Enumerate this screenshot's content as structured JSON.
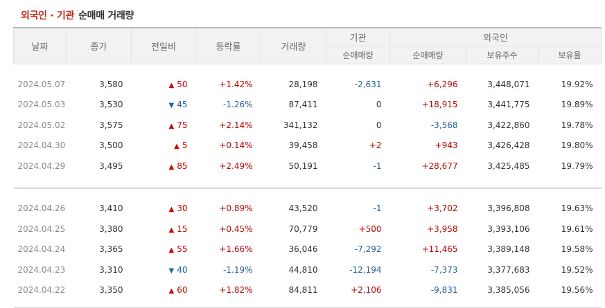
{
  "header": {
    "title_accent": "외국인 · 기관",
    "title_rest": "순매매 거래량"
  },
  "columns": {
    "date": "날짜",
    "close": "종가",
    "change": "전일비",
    "rate": "등락률",
    "volume": "거래량",
    "inst_group": "기관",
    "foreign_group": "외국인",
    "inst_net": "순매매량",
    "foreign_net": "순매매량",
    "holdings": "보유주수",
    "ratio": "보유율"
  },
  "icons": {
    "up": "▲",
    "down": "▼"
  },
  "colors": {
    "up": "#d60000",
    "down": "#1e60b0",
    "accent": "#c8291b"
  },
  "groups": [
    {
      "rows": [
        {
          "date": "2024.05.07",
          "close": "3,580",
          "dir": "up",
          "change": "50",
          "rate": "+1.42%",
          "volume": "28,198",
          "inst": "-2,631",
          "foreign": "+6,296",
          "holdings": "3,448,071",
          "ratio": "19.92%"
        },
        {
          "date": "2024.05.03",
          "close": "3,530",
          "dir": "down",
          "change": "45",
          "rate": "-1.26%",
          "volume": "87,411",
          "inst": "0",
          "foreign": "+18,915",
          "holdings": "3,441,775",
          "ratio": "19.89%"
        },
        {
          "date": "2024.05.02",
          "close": "3,575",
          "dir": "up",
          "change": "75",
          "rate": "+2.14%",
          "volume": "341,132",
          "inst": "0",
          "foreign": "-3,568",
          "holdings": "3,422,860",
          "ratio": "19.78%"
        },
        {
          "date": "2024.04.30",
          "close": "3,500",
          "dir": "up",
          "change": "5",
          "rate": "+0.14%",
          "volume": "39,458",
          "inst": "+2",
          "foreign": "+943",
          "holdings": "3,426,428",
          "ratio": "19.80%"
        },
        {
          "date": "2024.04.29",
          "close": "3,495",
          "dir": "up",
          "change": "85",
          "rate": "+2.49%",
          "volume": "50,191",
          "inst": "-1",
          "foreign": "+28,677",
          "holdings": "3,425,485",
          "ratio": "19.79%"
        }
      ]
    },
    {
      "rows": [
        {
          "date": "2024.04.26",
          "close": "3,410",
          "dir": "up",
          "change": "30",
          "rate": "+0.89%",
          "volume": "43,520",
          "inst": "-1",
          "foreign": "+3,702",
          "holdings": "3,396,808",
          "ratio": "19.63%"
        },
        {
          "date": "2024.04.25",
          "close": "3,380",
          "dir": "up",
          "change": "15",
          "rate": "+0.45%",
          "volume": "70,779",
          "inst": "+500",
          "foreign": "+3,958",
          "holdings": "3,393,106",
          "ratio": "19.61%"
        },
        {
          "date": "2024.04.24",
          "close": "3,365",
          "dir": "up",
          "change": "55",
          "rate": "+1.66%",
          "volume": "36,046",
          "inst": "-7,292",
          "foreign": "+11,465",
          "holdings": "3,389,148",
          "ratio": "19.58%"
        },
        {
          "date": "2024.04.23",
          "close": "3,310",
          "dir": "down",
          "change": "40",
          "rate": "-1.19%",
          "volume": "44,810",
          "inst": "-12,194",
          "foreign": "-7,373",
          "holdings": "3,377,683",
          "ratio": "19.52%"
        },
        {
          "date": "2024.04.22",
          "close": "3,350",
          "dir": "up",
          "change": "60",
          "rate": "+1.82%",
          "volume": "84,811",
          "inst": "+2,106",
          "foreign": "-9,831",
          "holdings": "3,385,056",
          "ratio": "19.56%"
        }
      ]
    }
  ]
}
